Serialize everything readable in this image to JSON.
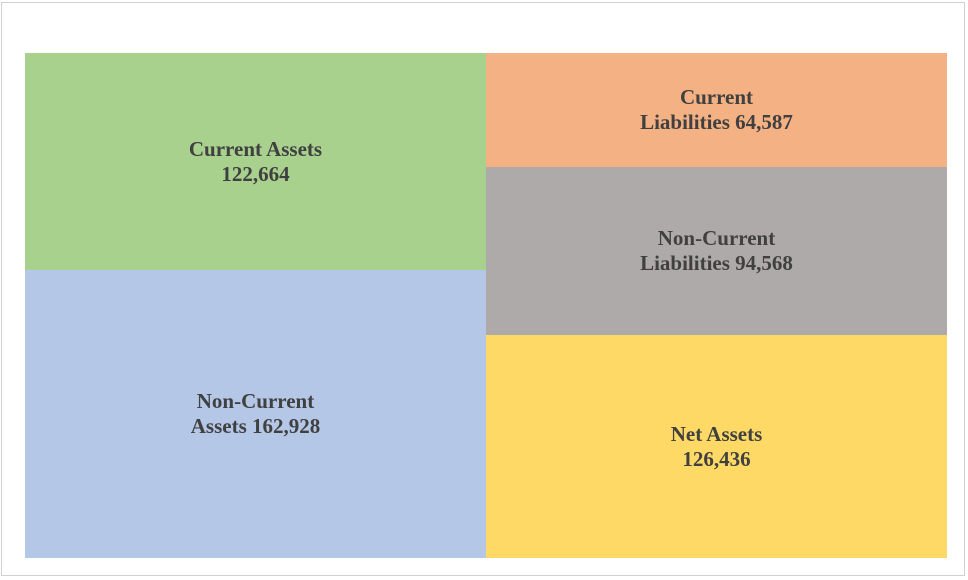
{
  "chart_data": {
    "type": "treemap",
    "title": "",
    "groups": [
      {
        "name": "",
        "items": [
          {
            "label": "Current Assets\n122,664",
            "name": "Current Assets",
            "value": 122664,
            "color": "#A9D18E"
          },
          {
            "label": "Non-Current\nAssets 162,928",
            "name": "Non-Current Assets",
            "value": 162928,
            "color": "#B4C7E7"
          }
        ]
      },
      {
        "name": "",
        "items": [
          {
            "label": "Current\nLiabilities 64,587",
            "name": "Current Liabilities",
            "value": 64587,
            "color": "#F4B183"
          },
          {
            "label": "Non-Current\nLiabilities 94,568",
            "name": "Non-Current Liabilities",
            "value": 94568,
            "color": "#AEAAAA"
          },
          {
            "label": "Net Assets\n126,436",
            "name": "Net Assets",
            "value": 126436,
            "color": "#FFD966"
          }
        ]
      }
    ]
  }
}
